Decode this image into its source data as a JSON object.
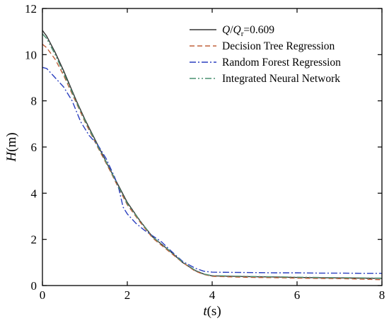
{
  "chart_data": {
    "type": "line",
    "xlabel": "t(s)",
    "ylabel": "H(m)",
    "xlim": [
      0,
      8
    ],
    "ylim": [
      0,
      12
    ],
    "xticks": [
      0,
      2,
      4,
      6,
      8
    ],
    "yticks": [
      0,
      2,
      4,
      6,
      8,
      10,
      12
    ],
    "grid": false,
    "legend": "top-right",
    "series": [
      {
        "name": "Q/Qr=0.609",
        "color": "#333333",
        "style": "solid",
        "x": [
          0,
          0.1,
          0.3,
          0.5,
          0.8,
          1.0,
          1.3,
          1.6,
          1.8,
          2.0,
          2.3,
          2.6,
          3.0,
          3.3,
          3.6,
          3.8,
          4.0,
          4.5,
          5.0,
          5.5,
          6.0,
          6.5,
          7.0,
          7.5,
          8.0
        ],
        "y": [
          11.05,
          10.8,
          10.1,
          9.3,
          8.0,
          7.2,
          6.1,
          5.0,
          4.3,
          3.6,
          2.8,
          2.1,
          1.5,
          1.0,
          0.65,
          0.5,
          0.42,
          0.4,
          0.38,
          0.37,
          0.35,
          0.34,
          0.33,
          0.32,
          0.31
        ]
      },
      {
        "name": "Decision Tree Regression",
        "color": "#c0603a",
        "style": "dashed",
        "x": [
          0,
          0.1,
          0.3,
          0.5,
          0.8,
          1.0,
          1.3,
          1.6,
          1.8,
          2.0,
          2.3,
          2.6,
          3.0,
          3.3,
          3.6,
          3.8,
          4.0,
          4.5,
          5.0,
          5.5,
          6.0,
          6.5,
          7.0,
          7.5,
          8.0
        ],
        "y": [
          10.45,
          10.3,
          9.8,
          9.1,
          7.9,
          7.1,
          6.0,
          4.95,
          4.2,
          3.5,
          2.75,
          2.05,
          1.45,
          1.0,
          0.62,
          0.48,
          0.4,
          0.37,
          0.35,
          0.34,
          0.32,
          0.31,
          0.3,
          0.28,
          0.25
        ]
      },
      {
        "name": "Random Forest Regression",
        "color": "#2a3fbf",
        "style": "dashdot",
        "x": [
          0,
          0.1,
          0.3,
          0.5,
          0.7,
          0.9,
          1.1,
          1.3,
          1.5,
          1.7,
          1.8,
          1.9,
          2.0,
          2.2,
          2.4,
          2.6,
          2.8,
          3.0,
          3.3,
          3.6,
          3.8,
          4.0,
          4.5,
          5.0,
          5.5,
          6.0,
          6.5,
          7.0,
          7.5,
          8.0
        ],
        "y": [
          9.45,
          9.4,
          9.0,
          8.6,
          8.0,
          7.1,
          6.5,
          6.1,
          5.5,
          4.7,
          4.2,
          3.4,
          3.1,
          2.7,
          2.4,
          2.15,
          1.9,
          1.55,
          1.05,
          0.75,
          0.62,
          0.58,
          0.57,
          0.56,
          0.55,
          0.55,
          0.54,
          0.54,
          0.53,
          0.53
        ]
      },
      {
        "name": "Integrated Neural Network",
        "color": "#4a9070",
        "style": "dashdotdot",
        "x": [
          0,
          0.1,
          0.3,
          0.5,
          0.8,
          1.0,
          1.3,
          1.6,
          1.8,
          2.0,
          2.3,
          2.6,
          3.0,
          3.3,
          3.6,
          3.8,
          4.0,
          4.5,
          5.0,
          5.5,
          6.0,
          6.5,
          7.0,
          7.5,
          8.0
        ],
        "y": [
          10.9,
          10.7,
          10.0,
          9.2,
          7.95,
          7.15,
          6.05,
          5.0,
          4.25,
          3.55,
          2.8,
          2.1,
          1.5,
          1.02,
          0.66,
          0.5,
          0.43,
          0.41,
          0.39,
          0.38,
          0.36,
          0.35,
          0.34,
          0.33,
          0.32
        ]
      }
    ]
  }
}
